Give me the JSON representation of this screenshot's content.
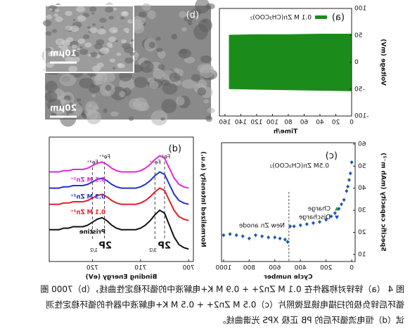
{
  "chart_data": [
    {
      "type": "band",
      "label": "(a)",
      "xlabel": "Time/h",
      "ylabel": "Voltage (mV)",
      "x": [
        0,
        40,
        80,
        120,
        155
      ],
      "series": [
        {
          "name": "0.1 M Zn(CH₃COO)₂",
          "color": "#1b8c1b",
          "values": [
            53,
            53,
            52,
            52,
            51
          ],
          "lower": [
            -54,
            -53,
            -52,
            -51,
            -50
          ]
        }
      ],
      "xlim": [
        0,
        167
      ],
      "xticks": [
        0,
        20,
        40,
        60,
        80,
        100,
        120,
        140,
        160
      ],
      "ylim": [
        -100,
        100
      ],
      "yticks": [
        -100,
        -50,
        0,
        50,
        100
      ]
    },
    {
      "type": "scatter",
      "label": "(c)",
      "xlabel": "Cycle number",
      "ylabel": "Specific capacity (mAh m⁻²)",
      "annotation": "0.5M Zn(CH₃COO)₂",
      "divider_label": "New Zn anode",
      "divider": 490,
      "x": [
        0,
        10,
        20,
        30,
        40,
        60,
        80,
        100,
        130,
        160,
        200,
        250,
        300,
        350,
        400,
        450,
        480,
        500,
        520,
        560,
        600,
        650,
        700,
        750,
        800,
        850,
        900,
        950,
        1000
      ],
      "series": [
        {
          "name": "Charge",
          "color": "#2ca02c",
          "values": [
            52,
            47,
            44,
            41,
            39,
            35,
            33,
            31,
            29,
            27.5,
            26,
            25,
            24.5,
            24,
            23.5,
            23,
            23,
            16,
            17,
            17.5,
            18,
            18,
            18.5,
            19,
            17.5,
            18.5,
            19,
            19.5,
            19
          ]
        },
        {
          "name": "Discharge",
          "color": "#1f3fdc",
          "values": [
            51.5,
            46.5,
            43.5,
            40.5,
            38.5,
            34.5,
            32.5,
            30.5,
            28.5,
            27,
            25.5,
            24.5,
            24,
            23.5,
            23,
            22.5,
            22.5,
            15.5,
            16.5,
            17,
            17.5,
            17.5,
            18,
            18.5,
            17,
            18,
            18.5,
            19,
            18.5
          ]
        }
      ],
      "xlim": [
        -27,
        1016
      ],
      "xticks": [
        0,
        200,
        400,
        600,
        800,
        1000
      ],
      "ylim": [
        6.8,
        60.6
      ],
      "yticks": [
        10,
        20,
        30,
        40,
        50,
        60
      ]
    },
    {
      "type": "line",
      "label": "(d)",
      "xlabel": "Binding Energy (eV)",
      "ylabel": "Normalized Intensity (a.u.)",
      "x": [
        700,
        701,
        702,
        703,
        704,
        705,
        706,
        707,
        708,
        709,
        710,
        711,
        712,
        713,
        714,
        715,
        716,
        717,
        718,
        719,
        720,
        721,
        722,
        723,
        724,
        725,
        726,
        727,
        728,
        729
      ],
      "series": [
        {
          "name": "Pristine",
          "color": "#111111",
          "values": [
            1.0,
            1.12,
            1.36,
            1.96,
            2.92,
            3.88,
            4.12,
            3.76,
            3.28,
            2.92,
            2.68,
            2.56,
            2.56,
            2.56,
            2.56,
            2.68,
            2.92,
            3.28,
            3.52,
            3.4,
            3.16,
            2.92,
            2.8,
            2.8,
            2.8,
            2.68,
            2.68,
            2.56,
            2.56,
            2.56
          ]
        },
        {
          "name": "0.1 M Zn²⁺",
          "color": "#e0202a",
          "values": [
            3.3,
            3.4,
            3.6,
            4.1,
            4.9,
            5.7,
            5.9,
            5.6,
            5.2,
            4.9,
            4.7,
            4.6,
            4.6,
            4.6,
            4.6,
            4.7,
            4.9,
            5.2,
            5.4,
            5.3,
            5.1,
            4.9,
            4.8,
            4.8,
            4.8,
            4.7,
            4.7,
            4.6,
            4.6,
            4.6
          ]
        },
        {
          "name": "0.3 M Zn²⁺",
          "color": "#2233cc",
          "values": [
            4.6,
            4.7,
            4.9,
            5.4,
            6.2,
            7.0,
            7.2,
            6.9,
            6.5,
            6.2,
            6.0,
            5.9,
            5.9,
            5.9,
            5.9,
            6.0,
            6.2,
            6.5,
            6.7,
            6.6,
            6.4,
            6.2,
            6.1,
            6.1,
            6.1,
            6.0,
            6.0,
            5.9,
            5.9,
            5.9
          ]
        },
        {
          "name": "0.5 M Zn²⁺",
          "color": "#e028d8",
          "values": [
            5.9,
            6.0,
            6.2,
            6.7,
            7.5,
            8.3,
            8.5,
            8.2,
            7.8,
            7.5,
            7.3,
            7.2,
            7.2,
            7.2,
            7.2,
            7.3,
            7.5,
            7.8,
            8.0,
            7.9,
            7.7,
            7.5,
            7.4,
            7.4,
            7.4,
            7.3,
            7.3,
            7.2,
            7.2,
            7.2
          ]
        }
      ],
      "guides": [
        705,
        707,
        717.5,
        720
      ],
      "guide_labels": [
        "Fe²⁺",
        "Fe³⁺",
        "Fe²⁺",
        "Fe³⁺"
      ],
      "peaks": [
        {
          "label": "2P",
          "sub": "3/2"
        },
        {
          "label": "2P",
          "sub": "1/2"
        }
      ],
      "xlim": [
        699,
        729
      ],
      "xticks": [
        700,
        710,
        720
      ],
      "ylim": [
        0,
        10
      ]
    }
  ],
  "figure_b": {
    "label": "(b)",
    "inset_scale": "10μm",
    "scale": "20μm"
  },
  "caption": [
    "图 4 （a）锌锌对称器件在 0.1 M Zn2+ + 0.9 M K+电解液中的循环稳定性曲线，（b）7000 圈",
    "循环后锌负极的扫描电镜显微照片（c）0.5 M Zn2+ + 0.5 M K+电解液中器件的循环稳定性测",
    "试（d）恒电流循环后的 PB 正极 XPS 光谱曲线。"
  ]
}
